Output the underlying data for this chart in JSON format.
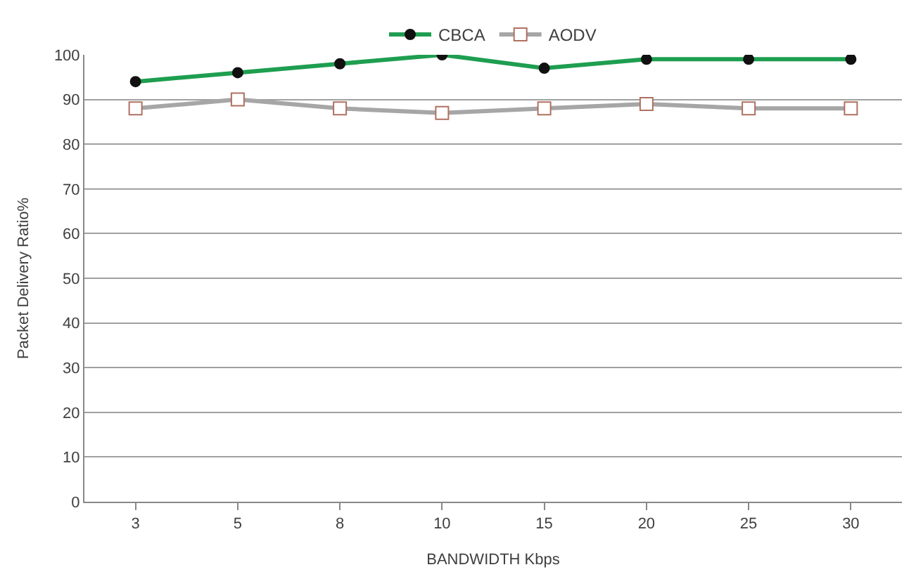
{
  "chart_data": {
    "type": "line",
    "xlabel": "BANDWIDTH Kbps",
    "ylabel": "Packet Delivery Ratio%",
    "categories": [
      "3",
      "5",
      "8",
      "10",
      "15",
      "20",
      "25",
      "30"
    ],
    "series": [
      {
        "name": "CBCA",
        "color": "#1e9e50",
        "marker": "circle",
        "values": [
          94,
          96,
          98,
          100,
          97,
          99,
          99,
          99
        ]
      },
      {
        "name": "AODV",
        "color": "#a6a6a6",
        "marker": "square",
        "values": [
          88,
          90,
          88,
          87,
          88,
          89,
          88,
          88
        ]
      }
    ],
    "ylim": [
      0,
      100
    ],
    "yticks": [
      0,
      10,
      20,
      30,
      40,
      50,
      60,
      70,
      80,
      90,
      100
    ],
    "grid": "y",
    "legend": "top"
  }
}
